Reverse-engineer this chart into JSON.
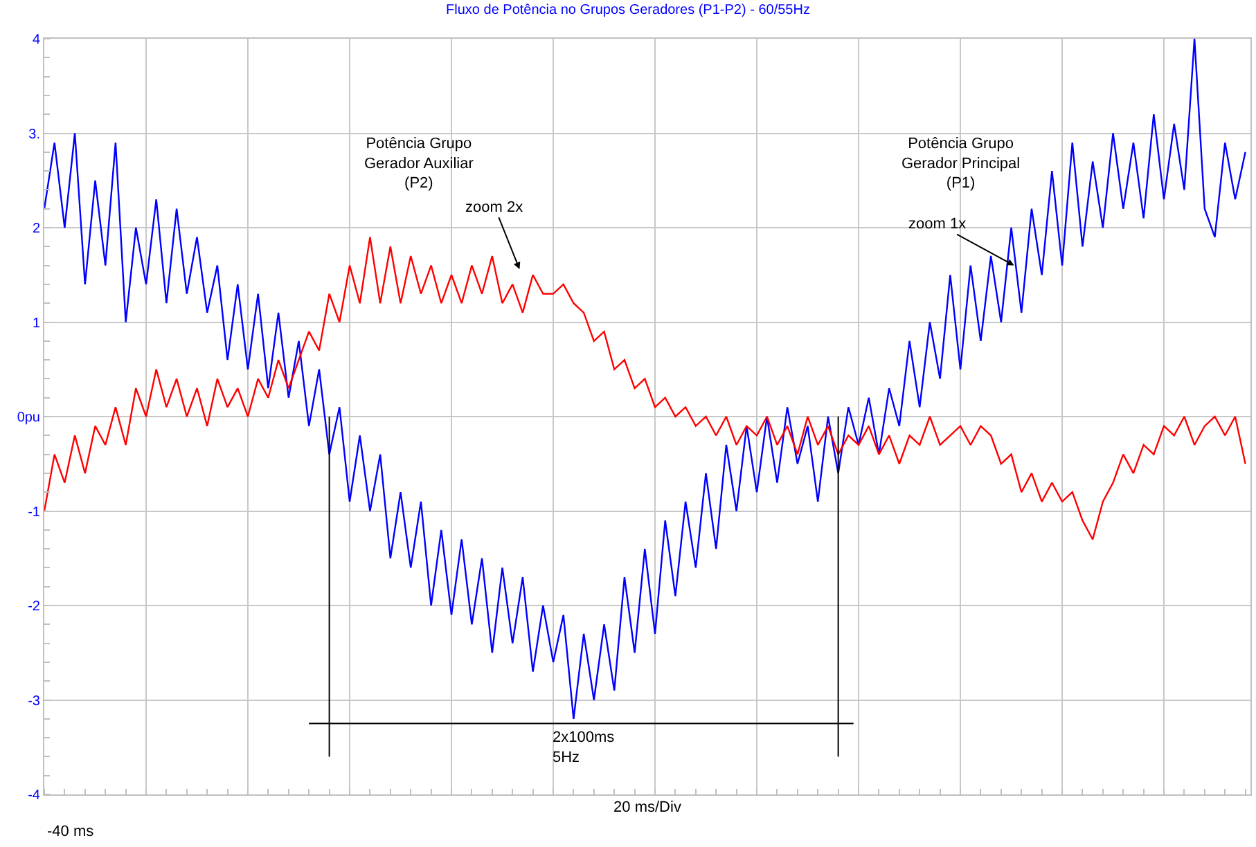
{
  "chart_data": {
    "type": "line",
    "title": "Fluxo de Potência no Grupos Geradores (P1-P2) - 60/55Hz",
    "xlabel": "20 ms/Div",
    "categories": [
      null,
      null,
      null,
      null,
      null,
      null,
      null,
      null,
      null,
      null,
      null,
      null,
      null,
      null,
      null,
      null,
      null,
      null,
      null,
      null,
      null,
      null,
      null,
      null,
      null,
      null,
      null,
      null,
      null,
      null,
      null,
      null,
      null,
      null,
      null,
      null,
      null,
      null,
      null,
      null,
      null,
      null,
      null,
      null,
      null,
      null,
      null,
      null,
      null,
      null,
      null,
      null,
      null,
      null,
      null,
      null,
      null,
      null,
      null,
      null,
      null,
      null,
      null,
      null,
      null,
      null,
      null,
      null,
      null,
      null,
      null,
      null,
      null,
      null,
      null,
      null,
      null,
      null,
      null,
      null,
      null,
      null,
      null,
      null,
      null,
      null,
      null,
      null,
      null,
      null,
      null,
      null,
      null,
      null,
      null,
      null,
      null,
      null,
      null,
      null,
      null,
      null,
      null,
      null,
      null,
      null,
      null,
      null,
      null,
      null,
      null,
      null,
      null,
      null,
      null,
      null,
      null,
      null,
      null
    ],
    "series": [
      {
        "color": "#0000ff",
        "values": [
          2.2,
          2.9,
          2.0,
          3.0,
          1.4,
          2.5,
          1.6,
          2.9,
          1.0,
          2.0,
          1.4,
          2.3,
          1.2,
          2.2,
          1.3,
          1.9,
          1.1,
          1.6,
          0.6,
          1.4,
          0.5,
          1.3,
          0.3,
          1.1,
          0.2,
          0.8,
          -0.1,
          0.5,
          -0.4,
          0.1,
          -0.9,
          -0.2,
          -1.0,
          -0.4,
          -1.5,
          -0.8,
          -1.6,
          -0.9,
          -2.0,
          -1.2,
          -2.1,
          -1.3,
          -2.2,
          -1.5,
          -2.5,
          -1.6,
          -2.4,
          -1.7,
          -2.7,
          -2.0,
          -2.6,
          -2.1,
          -3.2,
          -2.3,
          -3.0,
          -2.2,
          -2.9,
          -1.7,
          -2.5,
          -1.4,
          -2.3,
          -1.1,
          -1.9,
          -0.9,
          -1.6,
          -0.6,
          -1.4,
          -0.3,
          -1.0,
          -0.1,
          -0.8,
          0.0,
          -0.7,
          0.1,
          -0.5,
          -0.1,
          -0.9,
          0.0,
          -0.6,
          0.1,
          -0.3,
          0.2,
          -0.4,
          0.3,
          -0.1,
          0.8,
          0.1,
          1.0,
          0.4,
          1.5,
          0.5,
          1.6,
          0.8,
          1.7,
          1.0,
          2.0,
          1.1,
          2.2,
          1.5,
          2.6,
          1.6,
          2.9,
          1.8,
          2.7,
          2.0,
          3.0,
          2.2,
          2.9,
          2.1,
          3.2,
          2.3,
          3.1,
          2.4,
          4.0,
          2.2,
          1.9,
          2.9,
          2.3,
          2.8
        ]
      },
      {
        "color": "#ff0000",
        "values": [
          -1.0,
          -0.4,
          -0.7,
          -0.2,
          -0.6,
          -0.1,
          -0.3,
          0.1,
          -0.3,
          0.3,
          0.0,
          0.5,
          0.1,
          0.4,
          0.0,
          0.3,
          -0.1,
          0.4,
          0.1,
          0.3,
          0.0,
          0.4,
          0.2,
          0.6,
          0.3,
          0.6,
          0.9,
          0.7,
          1.3,
          1.0,
          1.6,
          1.2,
          1.9,
          1.2,
          1.8,
          1.2,
          1.7,
          1.3,
          1.6,
          1.2,
          1.5,
          1.2,
          1.6,
          1.3,
          1.7,
          1.2,
          1.4,
          1.1,
          1.5,
          1.3,
          1.3,
          1.4,
          1.2,
          1.1,
          0.8,
          0.9,
          0.5,
          0.6,
          0.3,
          0.4,
          0.1,
          0.2,
          0.0,
          0.1,
          -0.1,
          0.0,
          -0.2,
          0.0,
          -0.3,
          -0.1,
          -0.2,
          0.0,
          -0.3,
          -0.1,
          -0.4,
          0.0,
          -0.3,
          -0.1,
          -0.4,
          -0.2,
          -0.3,
          -0.1,
          -0.4,
          -0.2,
          -0.5,
          -0.2,
          -0.3,
          0.0,
          -0.3,
          -0.2,
          -0.1,
          -0.3,
          -0.1,
          -0.2,
          -0.5,
          -0.4,
          -0.8,
          -0.6,
          -0.9,
          -0.7,
          -0.9,
          -0.8,
          -1.1,
          -1.3,
          -0.9,
          -0.7,
          -0.4,
          -0.6,
          -0.3,
          -0.4,
          -0.1,
          -0.2,
          0.0,
          -0.3,
          -0.1,
          0.0,
          -0.2,
          0.0,
          -0.5
        ]
      }
    ],
    "ylim": [
      -4,
      4
    ],
    "yticks": [
      {
        "value": 4,
        "label": "4"
      },
      {
        "value": 3,
        "label": "3."
      },
      {
        "value": 2,
        "label": "2"
      },
      {
        "value": 1,
        "label": "1"
      },
      {
        "value": 0,
        "label": "0pu"
      },
      {
        "value": -1,
        "label": "-1"
      },
      {
        "value": -2,
        "label": "-2"
      },
      {
        "value": -3,
        "label": "-3"
      },
      {
        "value": -4,
        "label": "-4"
      }
    ],
    "grid": true,
    "marker": "none",
    "line_style": "solid",
    "ref_lines": [
      {
        "axis": "y",
        "value": -3.25,
        "label": "2x100ms\n5Hz",
        "color": "#000000"
      }
    ],
    "annotations": [
      "Potência Grupo\nGerador Auxiliar\n(P2)",
      "Potência Grupo\nGerador Principal\n(P1)",
      "-40 ms",
      "zoom 2x",
      "zoom 1x"
    ]
  }
}
